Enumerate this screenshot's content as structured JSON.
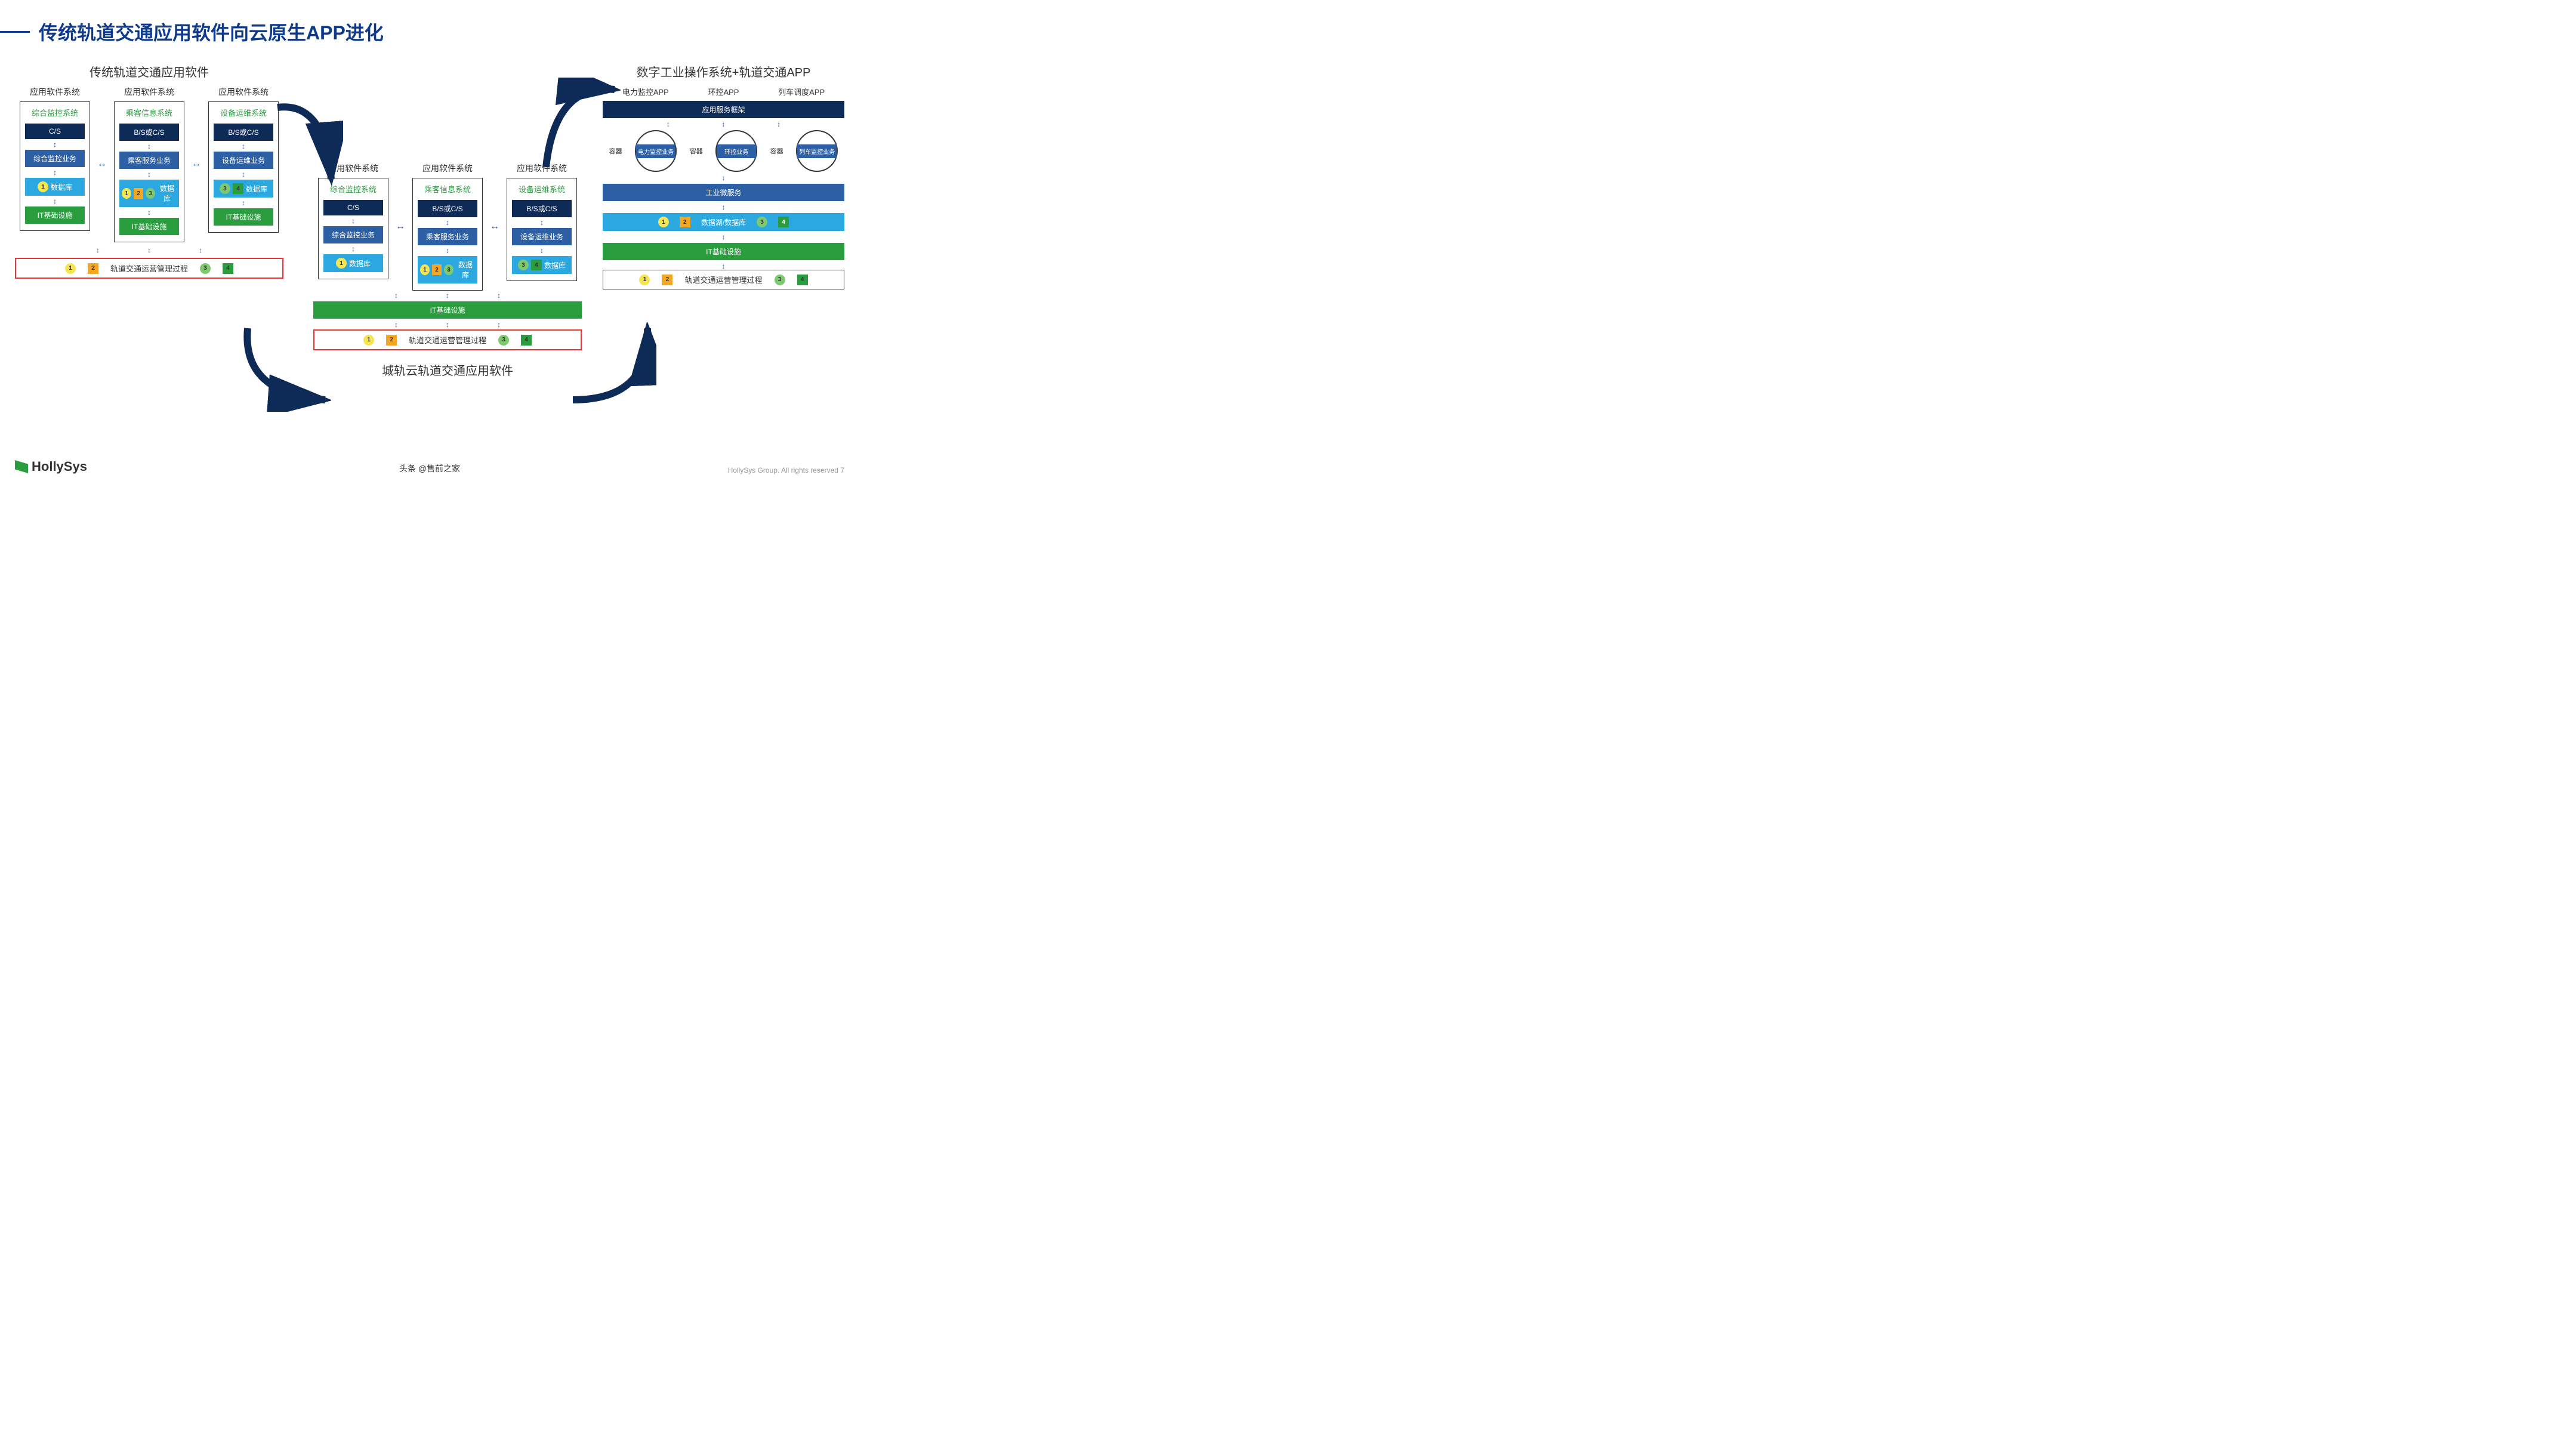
{
  "title": "传统轨道交通应用软件向云原生APP进化",
  "left": {
    "section_title": "传统轨道交通应用软件",
    "col_header": "应用软件系统",
    "cols": [
      {
        "title": "综合监控系统",
        "l1": "C/S",
        "l2": "综合监控业务",
        "l3": "数据库",
        "l4": "IT基础设施",
        "sq": [
          1
        ]
      },
      {
        "title": "乘客信息系统",
        "l1": "B/S或C/S",
        "l2": "乘客服务业务",
        "l3": "数据库",
        "l4": "IT基础设施",
        "sq": [
          1,
          2,
          3
        ]
      },
      {
        "title": "设备运维系统",
        "l1": "B/S或C/S",
        "l2": "设备运维业务",
        "l3": "数据库",
        "l4": "IT基础设施",
        "sq": [
          3,
          4
        ]
      }
    ],
    "bottom": "轨道交通运营管理过程"
  },
  "middle": {
    "section_title": "城轨云轨道交通应用软件",
    "col_header": "应用软件系统",
    "cols": [
      {
        "title": "综合监控系统",
        "l1": "C/S",
        "l2": "综合监控业务",
        "l3": "数据库",
        "sq": [
          1
        ]
      },
      {
        "title": "乘客信息系统",
        "l1": "B/S或C/S",
        "l2": "乘客服务业务",
        "l3": "数据库",
        "sq": [
          1,
          2,
          3
        ]
      },
      {
        "title": "设备运维系统",
        "l1": "B/S或C/S",
        "l2": "设备运维业务",
        "l3": "数据库",
        "sq": [
          3,
          4
        ]
      }
    ],
    "shared_it": "IT基础设施",
    "bottom": "轨道交通运营管理过程"
  },
  "right": {
    "section_title": "数字工业操作系统+轨道交通APP",
    "apps": [
      "电力监控APP",
      "环控APP",
      "列车调度APP"
    ],
    "framework": "应用服务框架",
    "circles": [
      "电力监控业务",
      "环控业务",
      "列车监控业务"
    ],
    "container_label": "容器",
    "microservice": "工业微服务",
    "datalake": "数据湖/数据库",
    "it": "IT基础设施",
    "bottom": "轨道交通运营管理过程"
  },
  "colors": {
    "title": "#0d3a8c",
    "dark": "#0e2a56",
    "mid": "#2c5fa4",
    "cyan": "#2ba8e0",
    "green": "#2a9d3f",
    "sq1": "#f5e651",
    "sq2": "#f5a623",
    "sq3": "#7cc96f",
    "sq4": "#2a9d3f",
    "red": "#e33"
  },
  "logo": "HollySys",
  "footer": "HollySys Group. All rights reserved    7",
  "watermark": "头条 @售前之家"
}
